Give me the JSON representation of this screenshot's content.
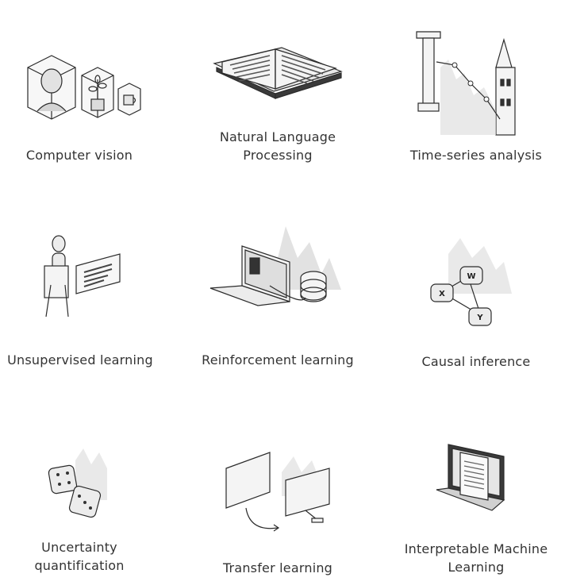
{
  "items": [
    {
      "label": "Computer vision",
      "icon": "computer-vision-icon"
    },
    {
      "label": "Natural Language\nProcessing",
      "icon": "open-book-icon"
    },
    {
      "label": "Time-series analysis",
      "icon": "column-tower-chart-icon"
    },
    {
      "label": "Unsupervised learning",
      "icon": "mannequin-screen-icon"
    },
    {
      "label": "Reinforcement learning",
      "icon": "laptop-database-icon"
    },
    {
      "label": "Causal inference",
      "icon": "causal-graph-icon"
    },
    {
      "label": "Uncertainty\nquantification",
      "icon": "dice-icon"
    },
    {
      "label": "Transfer learning",
      "icon": "monitors-transfer-icon"
    },
    {
      "label": "Interpretable Machine\nLearning",
      "icon": "laptop-document-icon"
    }
  ],
  "graph_nodes": [
    "W",
    "X",
    "Y"
  ],
  "colors": {
    "line": "#2b2b2b",
    "fill": "#f2f2f2",
    "shade": "#d9d9d9",
    "text": "#333333"
  }
}
